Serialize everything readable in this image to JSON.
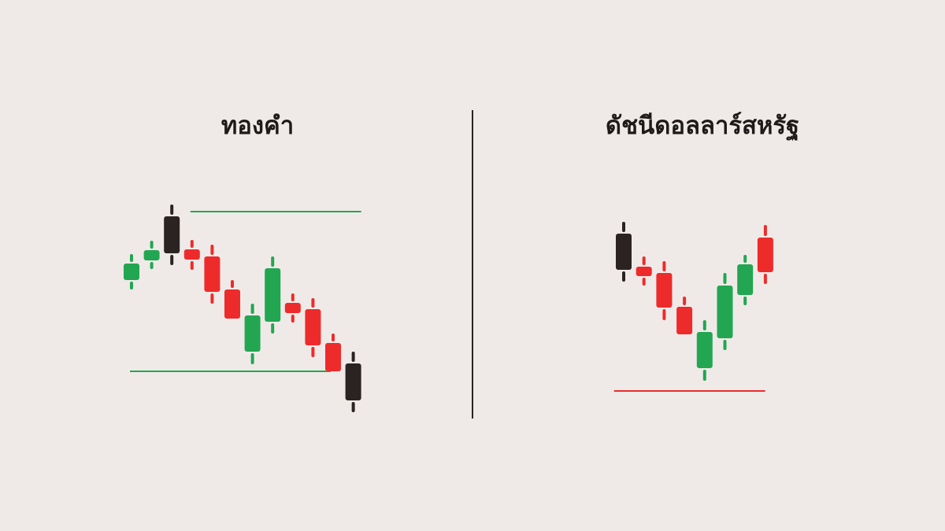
{
  "colors": {
    "background": "#efeae7",
    "up": "#22a652",
    "down": "#ee2b2b",
    "neutral": "#2b2321"
  },
  "chart_data": [
    {
      "type": "candlestick",
      "title": "ทองคำ",
      "grid": false,
      "candles": [
        {
          "open": 194,
          "high": 227,
          "low": 182,
          "close": 215,
          "color": "up"
        },
        {
          "open": 219,
          "high": 244,
          "low": 208,
          "close": 232,
          "color": "up"
        },
        {
          "open": 275,
          "high": 290,
          "low": 213,
          "close": 228,
          "color": "neutral"
        },
        {
          "open": 233,
          "high": 245,
          "low": 207,
          "close": 220,
          "color": "down"
        },
        {
          "open": 224,
          "high": 239,
          "low": 164,
          "close": 179,
          "color": "down"
        },
        {
          "open": 182,
          "high": 194,
          "low": 145,
          "close": 145,
          "color": "down"
        },
        {
          "open": 103,
          "high": 164,
          "low": 87,
          "close": 149,
          "color": "up"
        },
        {
          "open": 141,
          "high": 224,
          "low": 126,
          "close": 209,
          "color": "up"
        },
        {
          "open": 165,
          "high": 177,
          "low": 140,
          "close": 152,
          "color": "down"
        },
        {
          "open": 157,
          "high": 171,
          "low": 96,
          "close": 111,
          "color": "down"
        },
        {
          "open": 114,
          "high": 126,
          "low": 78,
          "close": 78,
          "color": "down"
        },
        {
          "open": 88,
          "high": 103,
          "low": 26,
          "close": 41,
          "color": "neutral"
        }
      ],
      "levels": [
        {
          "value": 281,
          "from": 3,
          "to": 11,
          "color": "up"
        },
        {
          "value": 78,
          "from": 0,
          "to": 9.5,
          "color": "up"
        }
      ]
    },
    {
      "type": "candlestick",
      "title": "ดัชนีดอลลาร์สหรัฐ",
      "grid": false,
      "candles": [
        {
          "open": 253,
          "high": 268,
          "low": 192,
          "close": 207,
          "color": "neutral"
        },
        {
          "open": 211,
          "high": 224,
          "low": 187,
          "close": 199,
          "color": "down"
        },
        {
          "open": 203,
          "high": 218,
          "low": 143,
          "close": 159,
          "color": "down"
        },
        {
          "open": 160,
          "high": 173,
          "low": 125,
          "close": 125,
          "color": "down"
        },
        {
          "open": 82,
          "high": 143,
          "low": 66,
          "close": 128,
          "color": "up"
        },
        {
          "open": 120,
          "high": 203,
          "low": 105,
          "close": 187,
          "color": "up"
        },
        {
          "open": 175,
          "high": 226,
          "low": 162,
          "close": 214,
          "color": "up"
        },
        {
          "open": 248,
          "high": 264,
          "low": 189,
          "close": 204,
          "color": "down"
        }
      ],
      "levels": [
        {
          "value": 53,
          "from": -0.4,
          "to": 6.6,
          "color": "down"
        }
      ]
    }
  ]
}
